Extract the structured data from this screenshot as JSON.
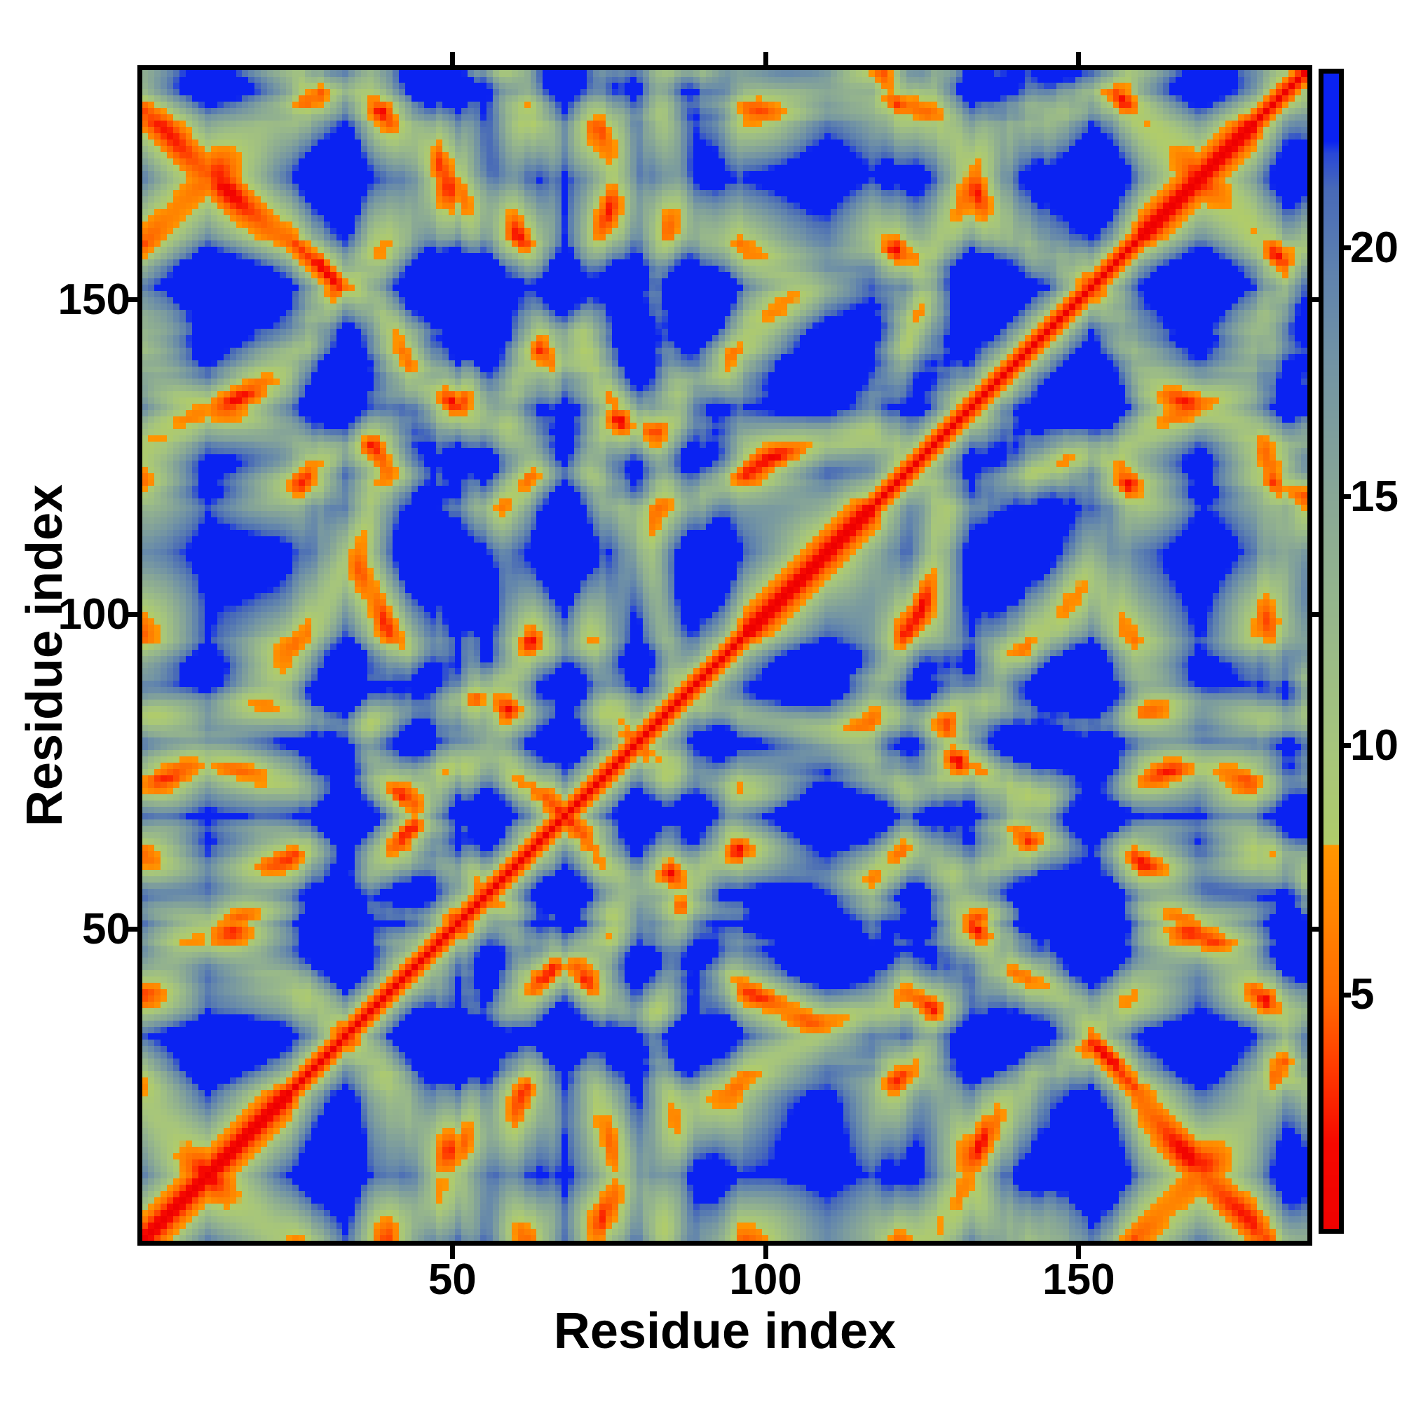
{
  "chart_data": {
    "type": "heatmap",
    "title": "",
    "xlabel": "Residue index",
    "ylabel": "Residue index",
    "x_ticks": [
      50,
      100,
      150
    ],
    "y_ticks": [
      50,
      100,
      150
    ],
    "x_range": [
      1,
      186
    ],
    "y_range": [
      1,
      186
    ],
    "grid": false,
    "legend_position": "none",
    "colorbar": {
      "position": "right",
      "ticks": [
        5,
        10,
        15,
        20
      ],
      "vmin": 0.3,
      "vmax": 23.5
    },
    "colors": {
      "background_far": "#0a22f2",
      "diagonal_near": "#ee0000",
      "mid_contact_orange": "#ff8c00",
      "mid_range_green": "#a6c57c",
      "long_range_steel": "#5f82ae",
      "frame": "#000000"
    },
    "colormap_stops": [
      [
        0.0,
        "#ee0000"
      ],
      [
        2.0,
        "#f60800"
      ],
      [
        3.5,
        "#ff3a00"
      ],
      [
        5.0,
        "#ff6c00"
      ],
      [
        6.5,
        "#ff8300"
      ],
      [
        8.0,
        "#ff9600"
      ],
      [
        8.02,
        "#b0cc6a"
      ],
      [
        10.0,
        "#a6c57c"
      ],
      [
        12.5,
        "#97b78b"
      ],
      [
        15.0,
        "#88a796"
      ],
      [
        17.5,
        "#7495a3"
      ],
      [
        19.5,
        "#5f82ae"
      ],
      [
        21.2,
        "#4769b8"
      ],
      [
        21.9,
        "#2847d8"
      ],
      [
        22.15,
        "#0a22f2"
      ],
      [
        23.5,
        "#0a22f2"
      ]
    ],
    "matrix_source": {
      "description": "Symmetric residue-residue distance matrix (values clamped at colorbar max); synthesized deterministically from a compact confined backbone walk with helical segments",
      "n_residues": 186,
      "clamp_max": 23.5,
      "seed": 42,
      "step": 3.6,
      "helix_step": 1.95,
      "persistence": 1.0,
      "turn_noise": 0.65,
      "helix_turn_noise": 0.15,
      "center_pull": 0.14,
      "bounce_pull": 1.0,
      "confine_radius": 18.5,
      "helices": [
        [
          0,
          23
        ],
        [
          97,
          116
        ],
        [
          160,
          177
        ]
      ]
    }
  }
}
